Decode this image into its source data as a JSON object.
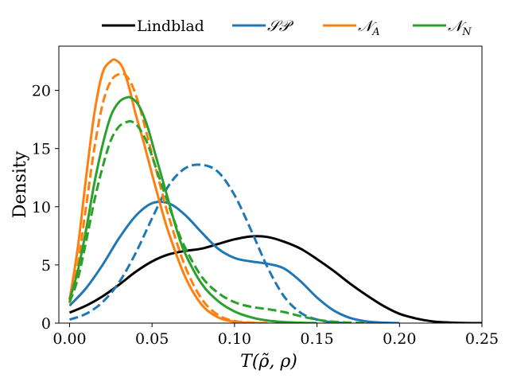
{
  "chart_data": {
    "type": "line",
    "title": "",
    "xlabel": "T(ρ̃, ρ)",
    "ylabel": "Density",
    "xlim": [
      -0.0065,
      0.25
    ],
    "ylim": [
      0,
      23.8
    ],
    "xticks": [
      0.0,
      0.05,
      0.1,
      0.15,
      0.2,
      0.25
    ],
    "xtick_labels": [
      "0.00",
      "0.05",
      "0.10",
      "0.15",
      "0.20",
      "0.25"
    ],
    "yticks": [
      0,
      5,
      10,
      15,
      20
    ],
    "ytick_labels": [
      "0",
      "5",
      "10",
      "15",
      "20"
    ],
    "grid": false,
    "legend_position": "top (above axes)",
    "legend": [
      {
        "label": "Lindblad",
        "color": "#000000"
      },
      {
        "label": "𝒮𝒫",
        "color": "#1f77b4"
      },
      {
        "label": "𝒩",
        "sub": "A",
        "color": "#ff7f0e"
      },
      {
        "label": "𝒩",
        "sub": "N",
        "color": "#2ca02c"
      }
    ],
    "series": [
      {
        "name": "Lindblad",
        "color": "#000000",
        "style": "solid",
        "x": [
          0.0,
          0.01,
          0.02,
          0.03,
          0.04,
          0.05,
          0.06,
          0.07,
          0.08,
          0.09,
          0.1,
          0.11,
          0.12,
          0.13,
          0.14,
          0.15,
          0.16,
          0.17,
          0.18,
          0.19,
          0.2,
          0.21,
          0.22,
          0.23,
          0.24,
          0.25
        ],
        "y": [
          0.9,
          1.5,
          2.3,
          3.3,
          4.4,
          5.3,
          5.9,
          6.2,
          6.4,
          6.8,
          7.2,
          7.45,
          7.4,
          7.0,
          6.4,
          5.5,
          4.5,
          3.4,
          2.4,
          1.5,
          0.8,
          0.4,
          0.15,
          0.05,
          0.01,
          0.0
        ]
      },
      {
        "name": "SP (solid)",
        "color": "#1f77b4",
        "style": "solid",
        "x": [
          0.0,
          0.01,
          0.02,
          0.03,
          0.04,
          0.05,
          0.06,
          0.07,
          0.08,
          0.09,
          0.1,
          0.11,
          0.12,
          0.13,
          0.14,
          0.15,
          0.16,
          0.17,
          0.18,
          0.19,
          0.2
        ],
        "y": [
          1.5,
          3.0,
          5.0,
          7.3,
          9.2,
          10.3,
          10.3,
          9.3,
          7.8,
          6.4,
          5.6,
          5.3,
          5.1,
          4.7,
          3.6,
          2.2,
          1.1,
          0.45,
          0.15,
          0.04,
          0.0
        ]
      },
      {
        "name": "SP (dashed)",
        "color": "#1f77b4",
        "style": "dashed",
        "x": [
          0.0,
          0.01,
          0.02,
          0.03,
          0.04,
          0.05,
          0.06,
          0.07,
          0.08,
          0.09,
          0.1,
          0.11,
          0.12,
          0.13,
          0.14,
          0.15,
          0.16,
          0.17
        ],
        "y": [
          0.3,
          0.8,
          1.8,
          3.5,
          6.0,
          9.0,
          11.8,
          13.3,
          13.6,
          13.0,
          11.0,
          8.0,
          4.8,
          2.3,
          0.9,
          0.3,
          0.07,
          0.0
        ]
      },
      {
        "name": "NA (solid)",
        "color": "#ff7f0e",
        "style": "solid",
        "x": [
          0.0,
          0.005,
          0.01,
          0.015,
          0.02,
          0.025,
          0.028,
          0.032,
          0.036,
          0.04,
          0.045,
          0.05,
          0.055,
          0.06,
          0.07,
          0.08,
          0.09,
          0.1,
          0.11,
          0.12
        ],
        "y": [
          2.0,
          6.5,
          12.5,
          18.0,
          21.5,
          22.5,
          22.6,
          22.0,
          20.3,
          18.0,
          15.5,
          12.8,
          10.2,
          7.8,
          4.0,
          1.6,
          0.5,
          0.12,
          0.02,
          0.0
        ]
      },
      {
        "name": "NA (dashed)",
        "color": "#ff7f0e",
        "style": "dashed",
        "x": [
          0.0,
          0.005,
          0.01,
          0.015,
          0.02,
          0.025,
          0.03,
          0.034,
          0.038,
          0.042,
          0.046,
          0.05,
          0.055,
          0.06,
          0.07,
          0.08,
          0.09,
          0.1,
          0.11,
          0.12
        ],
        "y": [
          1.7,
          5.0,
          10.0,
          15.0,
          18.8,
          20.8,
          21.4,
          21.3,
          20.4,
          18.8,
          16.7,
          14.5,
          11.8,
          9.2,
          4.9,
          2.1,
          0.7,
          0.18,
          0.04,
          0.0
        ]
      },
      {
        "name": "NN (solid)",
        "color": "#2ca02c",
        "style": "solid",
        "x": [
          0.0,
          0.005,
          0.01,
          0.015,
          0.02,
          0.025,
          0.03,
          0.035,
          0.038,
          0.042,
          0.047,
          0.052,
          0.058,
          0.065,
          0.07,
          0.08,
          0.09,
          0.1,
          0.11,
          0.12,
          0.13,
          0.14,
          0.15
        ],
        "y": [
          2.0,
          4.5,
          8.0,
          12.0,
          15.3,
          17.8,
          19.0,
          19.4,
          19.3,
          18.7,
          17.0,
          14.5,
          11.5,
          8.0,
          6.0,
          3.4,
          1.9,
          1.0,
          0.5,
          0.22,
          0.09,
          0.03,
          0.0
        ]
      },
      {
        "name": "NN (dashed)",
        "color": "#2ca02c",
        "style": "dashed",
        "x": [
          0.0,
          0.005,
          0.01,
          0.015,
          0.02,
          0.025,
          0.03,
          0.035,
          0.038,
          0.042,
          0.047,
          0.052,
          0.058,
          0.065,
          0.07,
          0.08,
          0.09,
          0.1,
          0.11,
          0.12,
          0.13,
          0.14,
          0.15,
          0.16,
          0.17,
          0.18
        ],
        "y": [
          1.8,
          3.8,
          7.0,
          10.5,
          13.4,
          15.7,
          16.9,
          17.3,
          17.3,
          16.8,
          15.5,
          13.5,
          11.0,
          8.2,
          6.5,
          4.0,
          2.6,
          1.8,
          1.4,
          1.2,
          0.95,
          0.6,
          0.3,
          0.12,
          0.04,
          0.0
        ]
      }
    ]
  }
}
